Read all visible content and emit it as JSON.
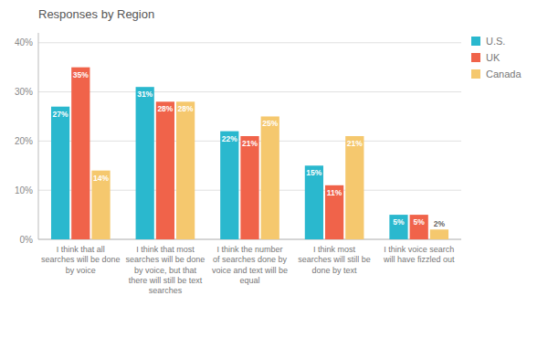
{
  "chart_data": {
    "type": "bar",
    "title": "Responses by Region",
    "categories": [
      "I think that all\nsearches will be done\nby voice",
      "I think that most\nsearches will be done\nby voice, but that\nthere will still be text\nsearches",
      "I think the number\nof searches done by\nvoice and text will be\nequal",
      "I think most\nsearches will still be\ndone by text",
      "I think voice search\nwill have fizzled out"
    ],
    "series": [
      {
        "name": "U.S.",
        "color": "#2ab8ce",
        "values": [
          27,
          31,
          22,
          15,
          5
        ],
        "value_labels": [
          "27%",
          "31%",
          "22%",
          "15%",
          "5%"
        ]
      },
      {
        "name": "UK",
        "color": "#f0634a",
        "values": [
          35,
          28,
          21,
          11,
          5
        ],
        "value_labels": [
          "35%",
          "28%",
          "21%",
          "11%",
          "5%"
        ]
      },
      {
        "name": "Canada",
        "color": "#f5c86e",
        "values": [
          14,
          28,
          25,
          21,
          2
        ],
        "value_labels": [
          "14%",
          "28%",
          "25%",
          "21%",
          "2%"
        ]
      }
    ],
    "ylim": [
      0,
      42
    ],
    "yticks": [
      {
        "value": 0,
        "label": "0%"
      },
      {
        "value": 10,
        "label": "10%"
      },
      {
        "value": 20,
        "label": "20%"
      },
      {
        "value": 30,
        "label": "30%"
      },
      {
        "value": 40,
        "label": "40%"
      }
    ],
    "grid": true,
    "legend": "right",
    "data_labels": true
  }
}
